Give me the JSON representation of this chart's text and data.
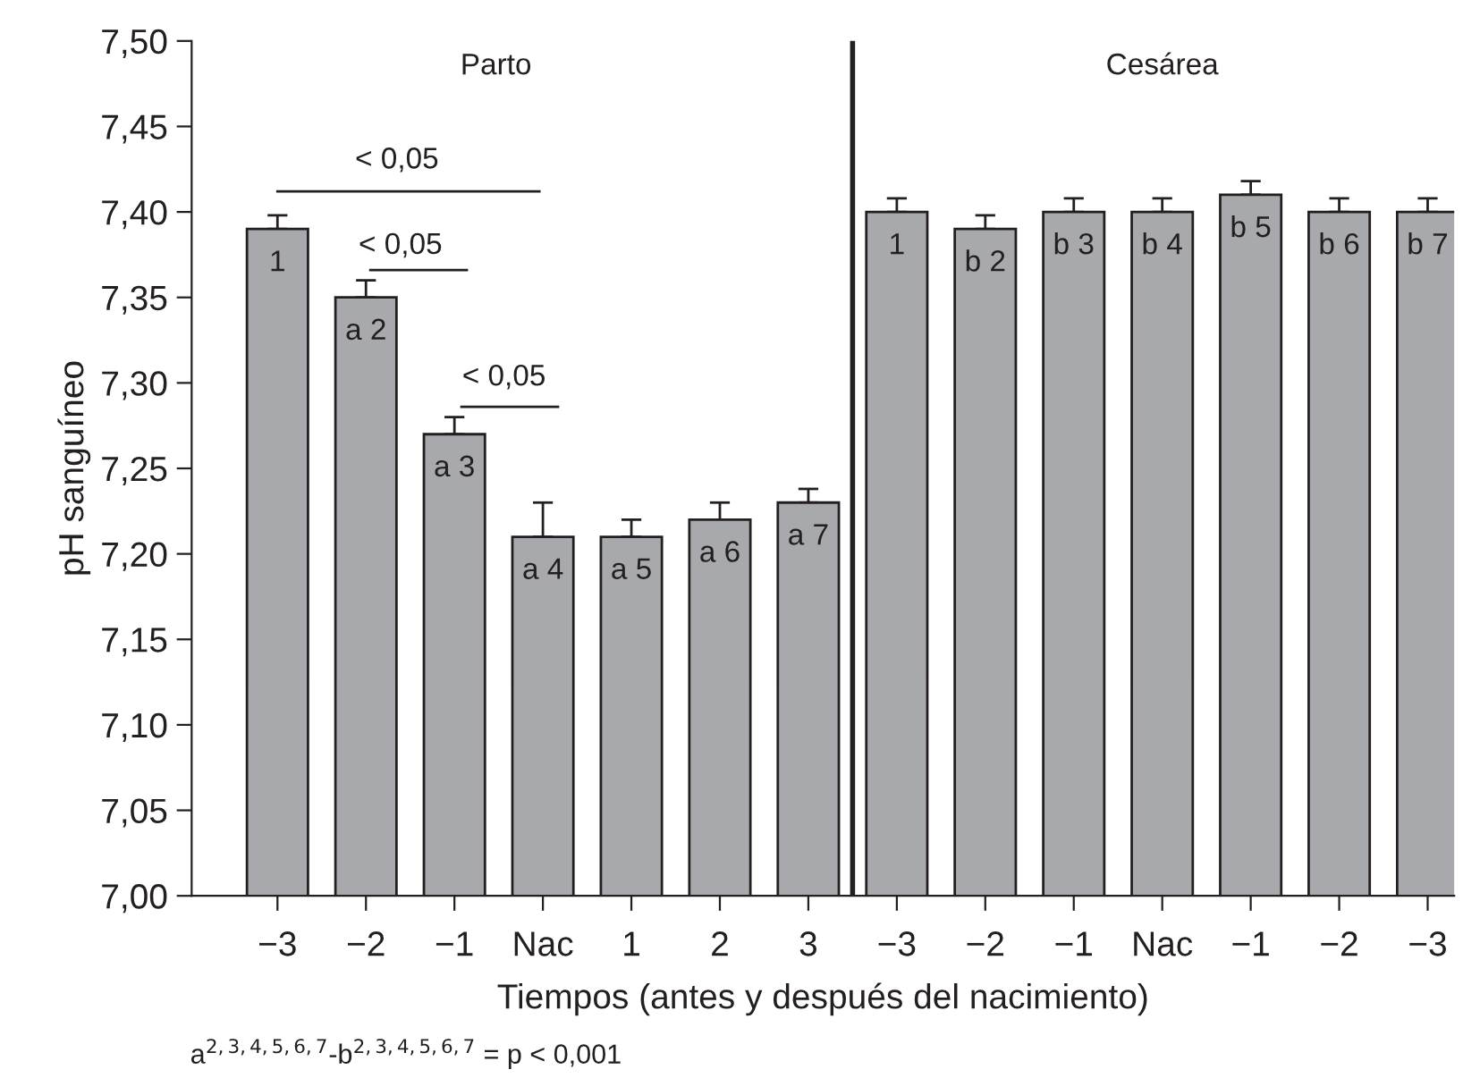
{
  "chart_data": {
    "type": "bar",
    "xlabel": "Tiempos (antes y después del nacimiento)",
    "ylabel": "pH sanguíneo",
    "categories": [
      "−3",
      "−2",
      "−1",
      "Nac",
      "1",
      "2",
      "3",
      "−3",
      "−2",
      "−1",
      "Nac",
      "−1",
      "−2",
      "−3"
    ],
    "values": [
      7.39,
      7.35,
      7.27,
      7.21,
      7.21,
      7.22,
      7.23,
      7.4,
      7.39,
      7.4,
      7.4,
      7.41,
      7.4,
      7.4
    ],
    "color": "#a7a9ac",
    "errors": [
      [
        7.39,
        7.398
      ],
      [
        7.35,
        7.36
      ],
      [
        7.27,
        7.28
      ],
      [
        7.21,
        7.23
      ],
      [
        7.21,
        7.22
      ],
      [
        7.22,
        7.23
      ],
      [
        7.23,
        7.238
      ],
      [
        7.4,
        7.408
      ],
      [
        7.39,
        7.398
      ],
      [
        7.4,
        7.408
      ],
      [
        7.4,
        7.408
      ],
      [
        7.41,
        7.418
      ],
      [
        7.4,
        7.408
      ],
      [
        7.4,
        7.408
      ]
    ],
    "ylim": [
      7.0,
      7.5
    ],
    "yticks": [
      {
        "value": 7.0,
        "label": "7,00"
      },
      {
        "value": 7.05,
        "label": "7,05"
      },
      {
        "value": 7.1,
        "label": "7,10"
      },
      {
        "value": 7.15,
        "label": "7,15"
      },
      {
        "value": 7.2,
        "label": "7,20"
      },
      {
        "value": 7.25,
        "label": "7,25"
      },
      {
        "value": 7.3,
        "label": "7,30"
      },
      {
        "value": 7.35,
        "label": "7,35"
      },
      {
        "value": 7.4,
        "label": "7,40"
      },
      {
        "value": 7.45,
        "label": "7,45"
      },
      {
        "value": 7.5,
        "label": "7,50"
      }
    ],
    "annotations": [
      "1",
      "a 2",
      "a 3",
      "a 4",
      "a 5",
      "a 6",
      "a 7",
      "1",
      "b 2",
      "b 3",
      "b 4",
      "b 5",
      "b 6",
      "b 7",
      "Parto",
      "Cesárea",
      "< 0,05",
      "< 0,05",
      "< 0,05",
      "a$^{2,3,4,5,6,7}$-b$^{2,3,4,5,6,7}$ = p < 0,001"
    ],
    "grid": false,
    "legend": false
  }
}
